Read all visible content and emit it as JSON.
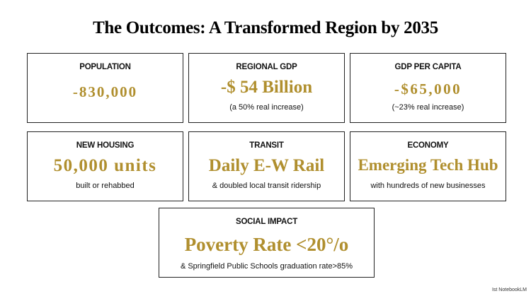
{
  "title": "The Outcomes: A Transformed Region by 2035",
  "cards": [
    {
      "label": "POPULATION",
      "value": "-830,000",
      "sub": ""
    },
    {
      "label": "REGIONAL GDP",
      "value": "-$ 54 Billion",
      "sub": "(a 50% real increase)"
    },
    {
      "label": "GDP PER CAPITA",
      "value": "-$65,000",
      "sub": "(~23% real increase)"
    },
    {
      "label": "NEW HOUSING",
      "value": "50,000 units",
      "sub": "built or rehabbed"
    },
    {
      "label": "TRANSIT",
      "value": "Daily E-W Rail",
      "sub": "& doubled local transit ridership"
    },
    {
      "label": "ECONOMY",
      "value": "Emerging Tech Hub",
      "sub": "with hundreds of new businesses"
    },
    {
      "label": "SOCIAL IMPACT",
      "value": "Poverty Rate <20°/o",
      "sub": "& Springfield Public Schools graduation rate>85%"
    }
  ],
  "watermark": "Ist NotebookLM",
  "colors": {
    "accent": "#b08f2e",
    "text": "#111111",
    "border": "#222222"
  }
}
